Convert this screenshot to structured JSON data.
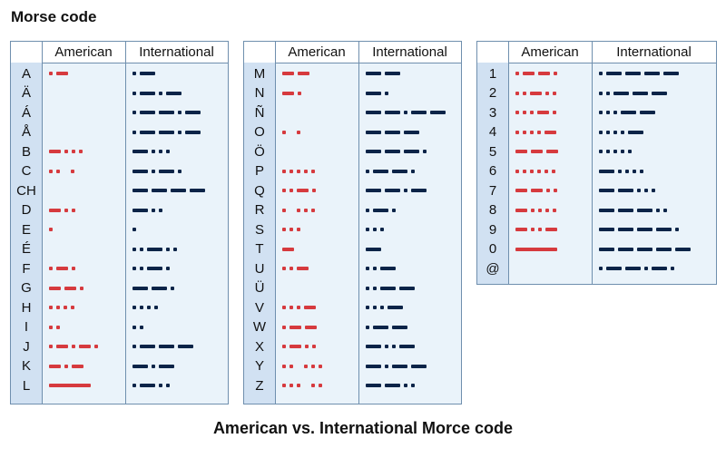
{
  "title": "Morse code",
  "caption": "American vs. International Morce code",
  "colors": {
    "american": "#d63a3e",
    "international": "#0b2448",
    "label_bg": "#d1e1f2",
    "panel_bg": "#eaf3fa",
    "border": "#6f8fae"
  },
  "headers": {
    "american": "American",
    "international": "International"
  },
  "legend": {
    "dot": ".",
    "dash": "-",
    "long_dash": "L",
    "spaced_dot": "o"
  },
  "tables": [
    {
      "rows": [
        {
          "char": "A",
          "american": ".-",
          "international": ".-"
        },
        {
          "char": "Ä",
          "american": "",
          "international": ".-.-"
        },
        {
          "char": "Á",
          "american": "",
          "international": ".--.-"
        },
        {
          "char": "Å",
          "american": "",
          "international": ".--.-"
        },
        {
          "char": "B",
          "american": "-...",
          "international": "-..."
        },
        {
          "char": "C",
          "american": "..o",
          "international": "-.-."
        },
        {
          "char": "CH",
          "american": "",
          "international": "----"
        },
        {
          "char": "D",
          "american": "-..",
          "international": "-.."
        },
        {
          "char": "E",
          "american": ".",
          "international": "."
        },
        {
          "char": "É",
          "american": "",
          "international": "..-.."
        },
        {
          "char": "F",
          "american": ".-.",
          "international": "..-."
        },
        {
          "char": "G",
          "american": "--.",
          "international": "--."
        },
        {
          "char": "H",
          "american": "....",
          "international": "...."
        },
        {
          "char": "I",
          "american": "..",
          "international": ".."
        },
        {
          "char": "J",
          "american": ".-.-.",
          "international": ".---"
        },
        {
          "char": "K",
          "american": "-.-",
          "international": "-.-"
        },
        {
          "char": "L",
          "american": "L",
          "international": ".-.."
        }
      ]
    },
    {
      "rows": [
        {
          "char": "M",
          "american": "--",
          "international": "--"
        },
        {
          "char": "N",
          "american": "-.",
          "international": "-."
        },
        {
          "char": "Ñ",
          "american": "",
          "international": "--.--"
        },
        {
          "char": "O",
          "american": ".o",
          "international": "---"
        },
        {
          "char": "Ö",
          "american": "",
          "international": "---."
        },
        {
          "char": "P",
          "american": ".....",
          "international": ".--."
        },
        {
          "char": "Q",
          "american": "..-.",
          "international": "--.-"
        },
        {
          "char": "R",
          "american": ".o..",
          "international": ".-."
        },
        {
          "char": "S",
          "american": "...",
          "international": "..."
        },
        {
          "char": "T",
          "american": "-",
          "international": "-"
        },
        {
          "char": "U",
          "american": "..-",
          "international": "..-"
        },
        {
          "char": "Ü",
          "american": "",
          "international": "..--"
        },
        {
          "char": "V",
          "american": "...-",
          "international": "...-"
        },
        {
          "char": "W",
          "american": ".--",
          "international": ".--"
        },
        {
          "char": "X",
          "american": ".-..",
          "international": "-..-"
        },
        {
          "char": "Y",
          "american": "..o..",
          "international": "-.--"
        },
        {
          "char": "Z",
          "american": "...o.",
          "international": "--.."
        }
      ]
    },
    {
      "rows": [
        {
          "char": "1",
          "american": ".--.",
          "international": ".----"
        },
        {
          "char": "2",
          "american": "..-..",
          "international": "..---"
        },
        {
          "char": "3",
          "american": "...-.",
          "international": "...--"
        },
        {
          "char": "4",
          "american": "....-",
          "international": "....-"
        },
        {
          "char": "5",
          "american": "---",
          "international": "....."
        },
        {
          "char": "6",
          "american": "......",
          "international": "-...."
        },
        {
          "char": "7",
          "american": "--..",
          "international": "--..."
        },
        {
          "char": "8",
          "american": "-....",
          "international": "---.."
        },
        {
          "char": "9",
          "american": "-..-",
          "international": "----."
        },
        {
          "char": "0",
          "american": "L",
          "international": "-----"
        },
        {
          "char": "@",
          "american": "",
          "international": ".--.-."
        }
      ]
    }
  ]
}
